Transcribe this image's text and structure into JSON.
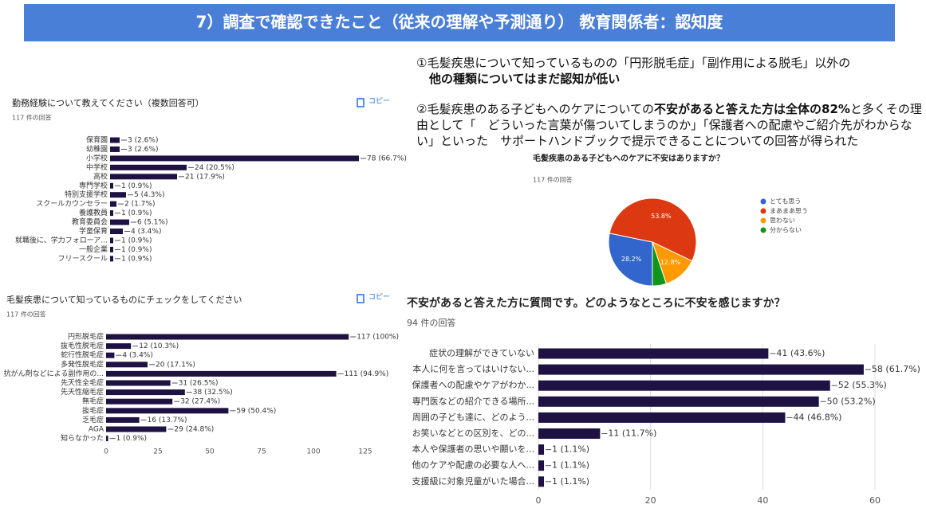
{
  "header": {
    "title": "7）調査で確認できたこと（従来の理解や予測通り） 教育関係者：認知度"
  },
  "notes": [
    {
      "segments": [
        {
          "text": "①毛髪疾患について知っているものの「円形脱毛症」「副作用による脱毛」以外の",
          "bold": false
        },
        {
          "text": "他の種類についてはまだ認知が低い",
          "bold": true
        }
      ]
    },
    {
      "segments": [
        {
          "text": "②毛髪疾患のある子どもへのケアについての",
          "bold": false
        },
        {
          "text": "不安があると答えた方は全体の82%",
          "bold": true
        },
        {
          "text": "と多くその理由として「　どういった言葉が傷ついてしまうのか」「保護者への配慮やご紹介先がわからない」といった　サポートハンドブックで提示できることについての回答が得られた",
          "bold": false
        }
      ]
    }
  ],
  "chart_data": [
    {
      "type": "bar",
      "orientation": "horizontal",
      "title": "勤務経験について教えてください（複数回答可）",
      "subtitle": "117 件の回答",
      "copy_label": "コピー",
      "color": "#1e1243",
      "categories": [
        "保育園",
        "幼稚園",
        "小学校",
        "中学校",
        "高校",
        "専門学校",
        "特別支援学校",
        "スクールカウンセラー",
        "養護教員",
        "教育委員会",
        "学童保育",
        "就職後に、学力フォローア...",
        "一般企業",
        "フリースクール"
      ],
      "values": [
        3,
        3,
        78,
        24,
        21,
        1,
        5,
        2,
        1,
        6,
        4,
        1,
        1,
        1
      ],
      "value_labels": [
        "3 (2.6%)",
        "3 (2.6%)",
        "78 (66.7%)",
        "24 (20.5%)",
        "21 (17.9%)",
        "1 (0.9%)",
        "5 (4.3%)",
        "2 (1.7%)",
        "1 (0.9%)",
        "6 (5.1%)",
        "4 (3.4%)",
        "1 (0.9%)",
        "1 (0.9%)",
        "1 (0.9%)"
      ]
    },
    {
      "type": "bar",
      "orientation": "horizontal",
      "title": "毛髪疾患について知っているものにチェックをしてください",
      "subtitle": "117 件の回答",
      "copy_label": "コピー",
      "color": "#1e1243",
      "categories": [
        "円形脱毛症",
        "抜毛性脱毛症",
        "蛇行性脱毛症",
        "多発性脱毛症",
        "抗がん剤などによる副作用の...",
        "先天性全毛症",
        "先天性縮毛症",
        "無毛症",
        "抜毛症",
        "乏毛症",
        "AGA",
        "知らなかった"
      ],
      "values": [
        117,
        12,
        4,
        20,
        111,
        31,
        38,
        32,
        59,
        16,
        29,
        1
      ],
      "value_labels": [
        "117 (100%)",
        "12 (10.3%)",
        "4 (3.4%)",
        "20 (17.1%)",
        "111 (94.9%)",
        "31 (26.5%)",
        "38 (32.5%)",
        "32 (27.4%)",
        "59 (50.4%)",
        "16 (13.7%)",
        "29 (24.8%)",
        "1 (0.9%)"
      ],
      "xlim": [
        0,
        125
      ],
      "xticks": [
        0,
        25,
        50,
        75,
        100,
        125
      ],
      "grid": false
    },
    {
      "type": "pie",
      "title": "毛髪疾患のある子どもへのケアに不安はありますか？",
      "subtitle": "117 件の回答",
      "categories": [
        "とても思う",
        "まあまあ思う",
        "思わない",
        "分からない"
      ],
      "values": [
        28.2,
        53.8,
        12.8,
        5.1
      ],
      "value_labels": [
        "28.2%",
        "53.8%",
        "12.8%",
        null
      ],
      "colors": [
        "#3366cc",
        "#dc3912",
        "#ff9900",
        "#109618"
      ]
    },
    {
      "type": "bar",
      "orientation": "horizontal",
      "title": "不安があると答えた方に質問です。どのようなところに不安を感じますか？",
      "subtitle": "94 件の回答",
      "color": "#1e1243",
      "categories": [
        "症状の理解ができていない",
        "本人に何を言ってはいけない...",
        "保護者への配慮やケアがわか...",
        "専門医などの紹介できる場所...",
        "周囲の子ども達に、どのよう...",
        "お笑いなどとの区別を、どの...",
        "本人や保護者の思いや願いを...",
        "他のケアや配慮の必要な人へ...",
        "支援級に対象児童がいた場合..."
      ],
      "values": [
        41,
        58,
        52,
        50,
        44,
        11,
        1,
        1,
        1
      ],
      "value_labels": [
        "41 (43.6%)",
        "58 (61.7%)",
        "52 (55.3%)",
        "50 (53.2%)",
        "44 (46.8%)",
        "11 (11.7%)",
        "1 (1.1%)",
        "1 (1.1%)",
        "1 (1.1%)"
      ],
      "xlim": [
        0,
        60
      ],
      "xticks": [
        0,
        20,
        40,
        60
      ],
      "grid": true
    }
  ]
}
